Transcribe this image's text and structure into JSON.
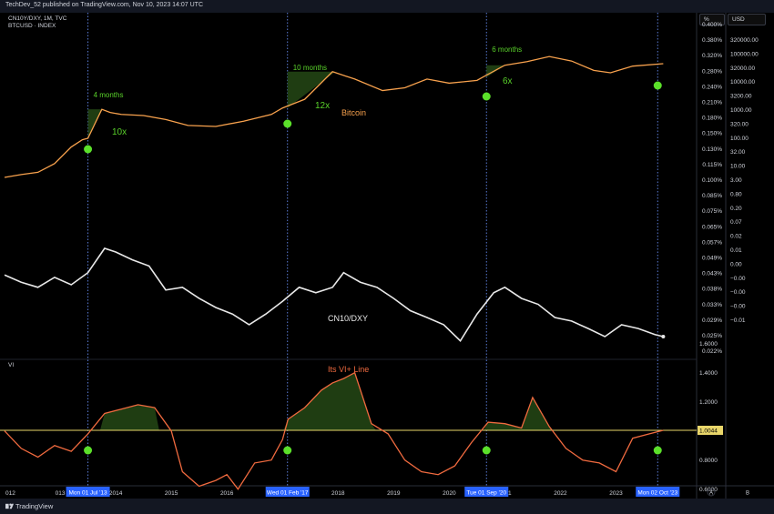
{
  "header": {
    "published": "TechDev_52 published on TradingView.com, Nov 10, 2023 14:07 UTC"
  },
  "symbols": {
    "main": "CN10Y/DXY, 1M, TVC",
    "overlay": "BTCUSD · INDEX",
    "vi_pane": "VI"
  },
  "scales": {
    "left_label": "%",
    "right_label": "USD"
  },
  "footer": {
    "brand": "TradingView"
  },
  "colors": {
    "bitcoin": "#f7a14d",
    "cn10_dxy": "#e8e8e8",
    "vi": "#f06a3f",
    "fill": "#1f3d12",
    "marker": "#5be02a",
    "annotation": "#59d12a",
    "baseline": "#e9d66a",
    "date_label_bg": "#2962ff"
  },
  "annotations": {
    "bitcoin_label": "Bitcoin",
    "cn_label": "CN10/DXY",
    "vi_label": "Its VI+ Line",
    "periods": [
      "4 months",
      "10 months",
      "6 months"
    ],
    "multiples": [
      "10x",
      "12x",
      "6x"
    ]
  },
  "chart_data": [
    {
      "type": "line",
      "title": "CN10Y/DXY, 1M, TVC",
      "series": [
        {
          "name": "CN10/DXY",
          "x": [
            2012.0,
            2012.3,
            2012.6,
            2012.9,
            2013.2,
            2013.5,
            2013.8,
            2014.0,
            2014.3,
            2014.6,
            2014.9,
            2015.2,
            2015.5,
            2015.8,
            2016.1,
            2016.4,
            2016.7,
            2017.0,
            2017.3,
            2017.6,
            2017.9,
            2018.1,
            2018.4,
            2018.7,
            2019.0,
            2019.3,
            2019.6,
            2019.9,
            2020.2,
            2020.5,
            2020.8,
            2021.0,
            2021.3,
            2021.6,
            2021.9,
            2022.2,
            2022.5,
            2022.8,
            2023.1,
            2023.4,
            2023.7,
            2023.85
          ],
          "y": [
            0.045,
            0.042,
            0.04,
            0.044,
            0.041,
            0.046,
            0.058,
            0.056,
            0.052,
            0.049,
            0.039,
            0.04,
            0.036,
            0.033,
            0.031,
            0.028,
            0.031,
            0.035,
            0.04,
            0.038,
            0.04,
            0.046,
            0.042,
            0.04,
            0.036,
            0.032,
            0.03,
            0.028,
            0.024,
            0.031,
            0.038,
            0.04,
            0.036,
            0.034,
            0.03,
            0.029,
            0.027,
            0.025,
            0.028,
            0.027,
            0.0255,
            0.025
          ]
        },
        {
          "name": "Bitcoin",
          "x": [
            2012.0,
            2012.3,
            2012.6,
            2012.9,
            2013.2,
            2013.4,
            2013.5,
            2013.75,
            2013.9,
            2014.1,
            2014.5,
            2014.9,
            2015.3,
            2015.8,
            2016.3,
            2016.8,
            2017.0,
            2017.4,
            2017.9,
            2018.3,
            2018.8,
            2019.2,
            2019.6,
            2020.0,
            2020.5,
            2020.6,
            2021.0,
            2021.4,
            2021.8,
            2022.2,
            2022.6,
            2022.9,
            2023.3,
            2023.85
          ],
          "y": [
            4,
            5,
            6,
            12,
            45,
            80,
            90,
            900,
            700,
            600,
            550,
            400,
            250,
            230,
            350,
            600,
            1000,
            2000,
            18000,
            10000,
            4000,
            5000,
            10000,
            7200,
            9000,
            11500,
            30000,
            40000,
            60000,
            42000,
            20000,
            16500,
            28000,
            34000
          ]
        }
      ],
      "x_tick_labels": [
        "012",
        "013",
        "2014",
        "2015",
        "2016",
        "2017",
        "2018",
        "2019",
        "2020",
        "2021",
        "2022",
        "2023"
      ],
      "left_axis": [
        "0.400%",
        "0.380%",
        "0.320%",
        "0.280%",
        "0.240%",
        "0.210%",
        "0.180%",
        "0.150%",
        "0.130%",
        "0.115%",
        "0.100%",
        "0.085%",
        "0.075%",
        "0.065%",
        "0.057%",
        "0.049%",
        "0.043%",
        "0.038%",
        "0.033%",
        "0.029%",
        "0.025%",
        "0.022%"
      ],
      "right_axis_usd": [
        "320000.00",
        "100000.00",
        "32000.00",
        "10000.00",
        "3200.00",
        "1000.00",
        "320.00",
        "100.00",
        "32.00",
        "10.00",
        "3.00",
        "0.80",
        "0.20",
        "0.07",
        "0.02",
        "0.01",
        "0.00",
        "−0.00",
        "−0.00",
        "−0.00",
        "−0.01"
      ],
      "date_labels": [
        "Mon 01 Jul '13",
        "Wed 01 Feb '17",
        "Tue 01 Sep '20",
        "Mon 02 Oct '23"
      ]
    },
    {
      "type": "line",
      "title": "VI",
      "series": [
        {
          "name": "Its VI+ Line",
          "x": [
            2012.0,
            2012.3,
            2012.6,
            2012.9,
            2013.2,
            2013.5,
            2013.8,
            2014.1,
            2014.4,
            2014.7,
            2015.0,
            2015.2,
            2015.5,
            2015.8,
            2016.0,
            2016.2,
            2016.5,
            2016.8,
            2017.0,
            2017.1,
            2017.4,
            2017.7,
            2017.9,
            2018.1,
            2018.3,
            2018.6,
            2018.9,
            2019.2,
            2019.5,
            2019.8,
            2020.1,
            2020.4,
            2020.7,
            2021.0,
            2021.3,
            2021.5,
            2021.8,
            2022.1,
            2022.4,
            2022.7,
            2023.0,
            2023.3,
            2023.6,
            2023.85
          ],
          "y": [
            1.0,
            0.88,
            0.82,
            0.9,
            0.86,
            0.98,
            1.12,
            1.15,
            1.18,
            1.16,
            1.0,
            0.72,
            0.62,
            0.66,
            0.7,
            0.6,
            0.78,
            0.8,
            0.94,
            1.08,
            1.16,
            1.28,
            1.33,
            1.36,
            1.4,
            1.05,
            0.98,
            0.8,
            0.72,
            0.7,
            0.76,
            0.92,
            1.06,
            1.05,
            1.02,
            1.23,
            1.03,
            0.88,
            0.8,
            0.78,
            0.72,
            0.95,
            0.98,
            1.0044
          ]
        }
      ],
      "axis_labels": [
        "1.6000",
        "1.4000",
        "1.2000",
        "1.0044",
        "0.8000",
        "0.6000"
      ],
      "baseline": 1.0044,
      "current_value_label": "1.0044"
    }
  ],
  "bottom_buttons": {
    "auto": "A",
    "log": "B"
  }
}
